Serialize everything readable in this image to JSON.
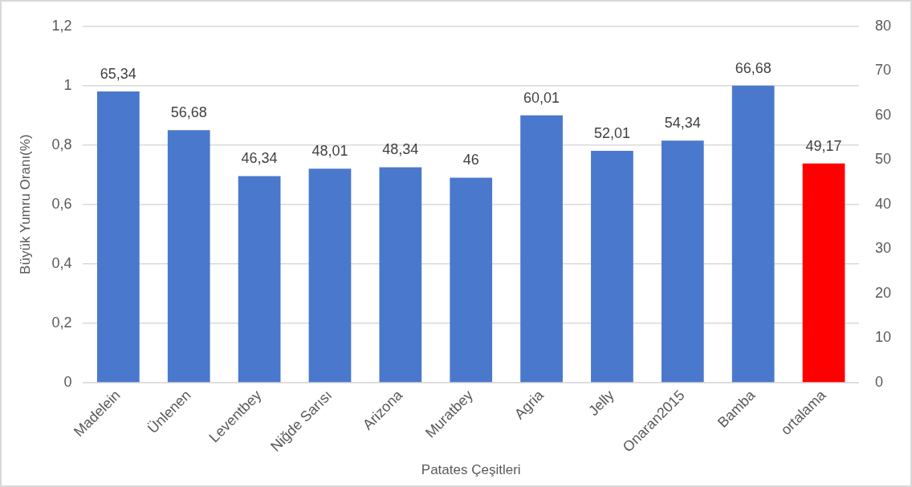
{
  "chart_data": {
    "type": "bar",
    "xlabel": "Patates Çeşitleri",
    "ylabel": "Büyük Yumru Oranı(%)",
    "categories": [
      "Madelein",
      "Ünlenen",
      "Leventbey",
      "Niğde Sarısı",
      "Arizona",
      "Muratbey",
      "Agria",
      "Jelly",
      "Onaran2015",
      "Bamba",
      "ortalama"
    ],
    "series": [
      {
        "axis": "y2",
        "colors": [
          "#4a78cc",
          "#4a78cc",
          "#4a78cc",
          "#4a78cc",
          "#4a78cc",
          "#4a78cc",
          "#4a78cc",
          "#4a78cc",
          "#4a78cc",
          "#4a78cc",
          "#ff0000"
        ],
        "values": [
          65.34,
          56.68,
          46.34,
          48.01,
          48.34,
          46,
          60.01,
          52.01,
          54.34,
          66.68,
          49.17
        ],
        "value_labels": [
          "65,34",
          "56,68",
          "46,34",
          "48,01",
          "48,34",
          "46",
          "60,01",
          "52,01",
          "54,34",
          "66,68",
          "49,17"
        ]
      }
    ],
    "ylim": [
      0,
      1.2
    ],
    "yticks": [
      0,
      {
        "value": 0.2,
        "label": "0,2"
      },
      {
        "value": 0.4,
        "label": "0,4"
      },
      {
        "value": 0.6,
        "label": "0,6"
      },
      {
        "value": 0.8,
        "label": "0,8"
      },
      1,
      {
        "value": 1.2,
        "label": "1,2"
      }
    ],
    "y2lim": [
      0,
      80
    ],
    "y2ticks": [
      0,
      10,
      20,
      30,
      40,
      50,
      60,
      70,
      80
    ],
    "grid": "y"
  }
}
